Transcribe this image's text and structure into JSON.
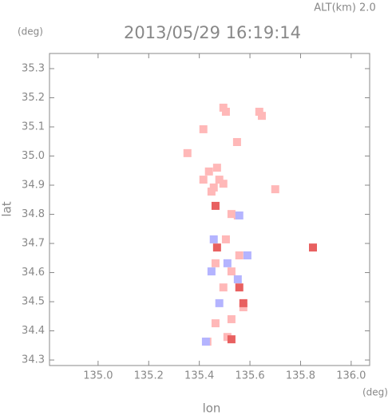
{
  "chart_data": {
    "type": "scatter",
    "title": "2013/05/29 16:19:14",
    "subtitle": "ALT(km) 2.0",
    "y_unit": "(deg)",
    "x_unit": "(deg)",
    "x_label": "lon",
    "y_label": "lat",
    "xlim": [
      134.808,
      136.073
    ],
    "ylim": [
      34.281,
      35.352
    ],
    "xticks": [
      {
        "value": 135.0,
        "label": "135.0"
      },
      {
        "value": 135.2,
        "label": "135.2"
      },
      {
        "value": 135.4,
        "label": "135.4"
      },
      {
        "value": 135.6,
        "label": "135.6"
      },
      {
        "value": 135.8,
        "label": "135.8"
      },
      {
        "value": 136.0,
        "label": "136.0"
      }
    ],
    "yticks": [
      34.3,
      34.4,
      34.5,
      34.6,
      34.7,
      34.8,
      34.9,
      {
        "value": 35.0,
        "label": "35.0"
      },
      35.1,
      35.2,
      35.3
    ],
    "grid": false,
    "series": [
      {
        "color": "#ffb8b8",
        "x": [
          135.495,
          135.505,
          135.637,
          135.647,
          135.549,
          135.353,
          135.416,
          135.47,
          135.438,
          135.479,
          135.457,
          135.495,
          135.448,
          135.416,
          135.552,
          135.527,
          135.505,
          135.558,
          135.464,
          135.527,
          135.495,
          135.574,
          135.527,
          135.464,
          135.511,
          135.432,
          135.7
        ],
        "y": [
          35.166,
          35.152,
          35.152,
          35.138,
          35.048,
          35.01,
          35.092,
          34.96,
          34.947,
          34.919,
          34.892,
          34.905,
          34.878,
          34.919,
          34.796,
          34.801,
          34.714,
          34.659,
          34.632,
          34.604,
          34.549,
          34.481,
          34.44,
          34.426,
          34.379,
          34.363,
          34.886
        ]
      },
      {
        "color": "#b4b4ff",
        "x": [
          135.457,
          135.511,
          135.448,
          135.552,
          135.479,
          135.426,
          135.558,
          135.59
        ],
        "y": [
          34.714,
          34.632,
          34.604,
          34.577,
          34.495,
          34.363,
          34.796,
          34.659
        ]
      },
      {
        "color": "#e86060",
        "x": [
          135.47,
          135.558,
          135.527,
          135.574,
          135.849,
          135.464
        ],
        "y": [
          34.686,
          34.549,
          34.371,
          34.495,
          34.686,
          34.829
        ]
      }
    ]
  }
}
